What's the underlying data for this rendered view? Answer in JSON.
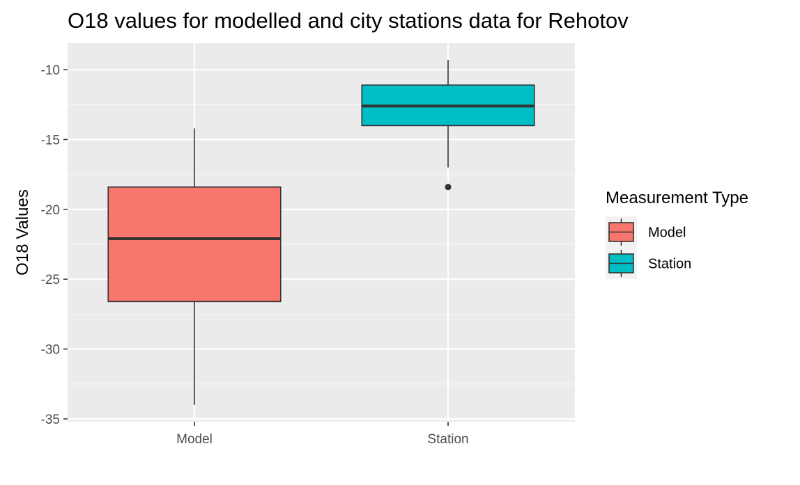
{
  "chart_data": {
    "type": "boxplot",
    "title": "O18 values for modelled and city stations data for Rehotov",
    "xlabel": "",
    "ylabel": "O18 Values",
    "categories": [
      "Model",
      "Station"
    ],
    "ylim": [
      -35.2,
      -8.1
    ],
    "yticks": [
      -35,
      -30,
      -25,
      -20,
      -15,
      -10
    ],
    "grid": true,
    "legend": {
      "title": "Measurement Type",
      "placement": "right",
      "entries": [
        {
          "name": "Model",
          "color": "#F8766D"
        },
        {
          "name": "Station",
          "color": "#00BFC4"
        }
      ]
    },
    "series": [
      {
        "name": "Model",
        "color": "#F8766D",
        "whisker_low": -34.0,
        "q1": -26.6,
        "median": -22.1,
        "q3": -18.4,
        "whisker_high": -14.2,
        "outliers": []
      },
      {
        "name": "Station",
        "color": "#00BFC4",
        "whisker_low": -17.0,
        "q1": -14.0,
        "median": -12.6,
        "q3": -11.1,
        "whisker_high": -9.3,
        "outliers": [
          -18.4
        ]
      }
    ]
  }
}
